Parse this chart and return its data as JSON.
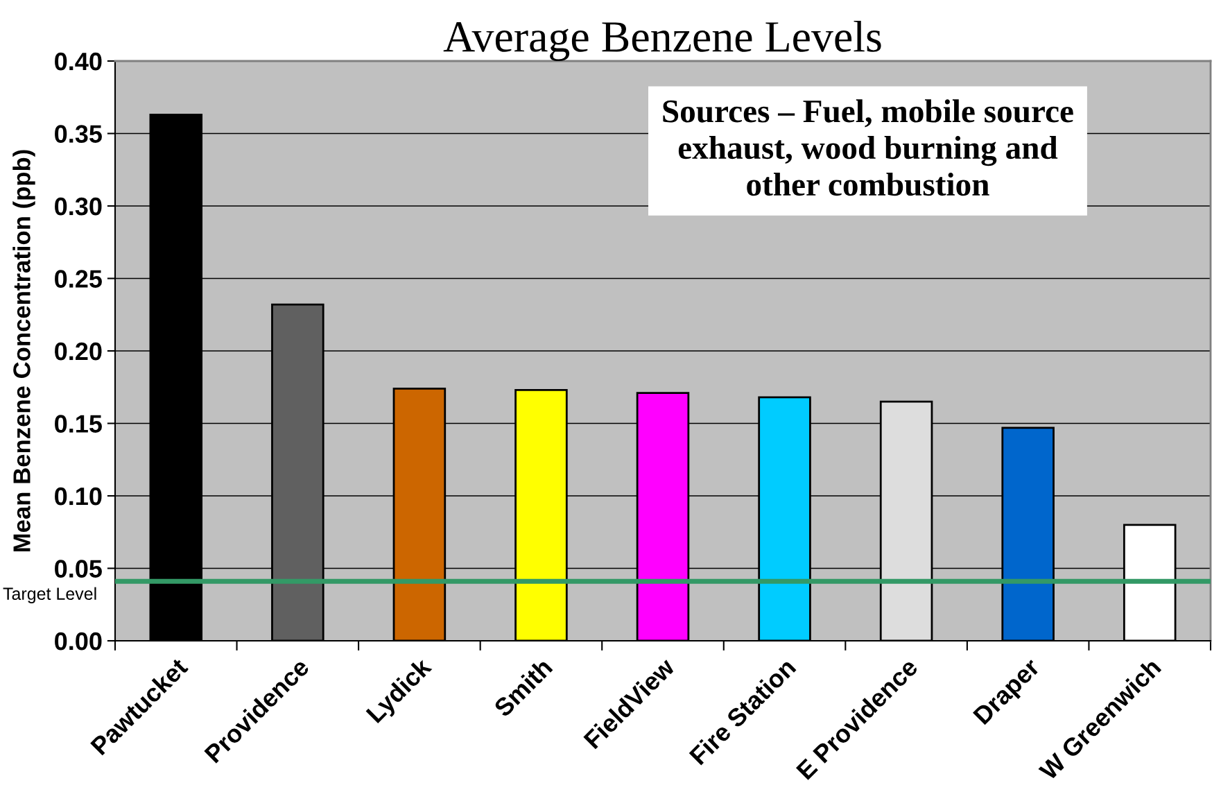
{
  "chart_data": {
    "type": "bar",
    "title": "Average Benzene Levels",
    "ylabel": "Mean Benzene Concentration (ppb)",
    "categories": [
      "Pawtucket",
      "Providence",
      "Lydick",
      "Smith",
      "FieldView",
      "Fire Station",
      "E Providence",
      "Draper",
      "W Greenwich"
    ],
    "values": [
      0.363,
      0.232,
      0.174,
      0.173,
      0.171,
      0.168,
      0.165,
      0.147,
      0.08
    ],
    "colors": [
      "#000000",
      "#606060",
      "#cc6600",
      "#ffff00",
      "#ff00ff",
      "#00ccff",
      "#dddddd",
      "#0066cc",
      "#ffffff"
    ],
    "ylim": [
      0,
      0.4
    ],
    "yticks": [
      {
        "value": 0,
        "label": "0.00"
      },
      {
        "value": 0.05,
        "label": "0.05"
      },
      {
        "value": 0.1,
        "label": "0.10"
      },
      {
        "value": 0.15,
        "label": "0.15"
      },
      {
        "value": 0.2,
        "label": "0.20"
      },
      {
        "value": 0.25,
        "label": "0.25"
      },
      {
        "value": 0.3,
        "label": "0.30"
      },
      {
        "value": 0.35,
        "label": "0.35"
      },
      {
        "value": 0.4,
        "label": "0.40"
      }
    ],
    "grid": "y",
    "ref_lines": [
      {
        "axis": "y",
        "value": 0.041,
        "label": "Target Level",
        "color": "#339966"
      }
    ],
    "annotations": [
      "Sources – Fuel, mobile source\nexhaust, wood burning and\nother combustion"
    ]
  }
}
